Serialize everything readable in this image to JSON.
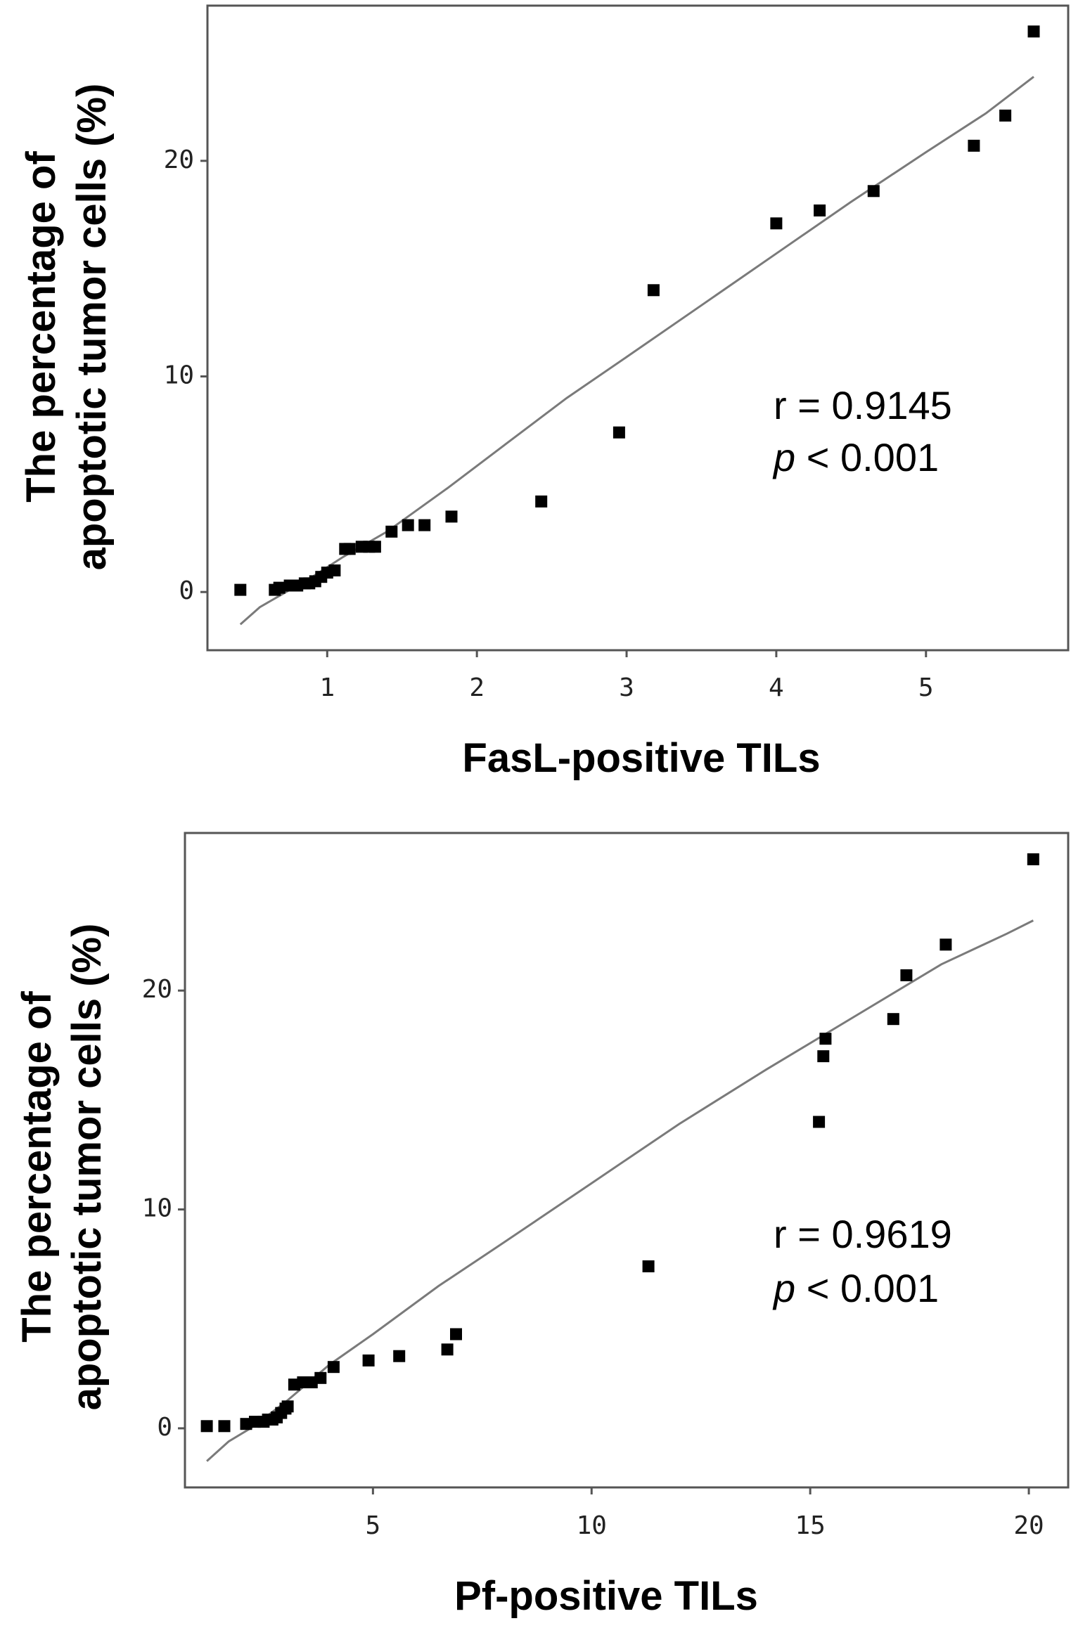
{
  "chart_data": [
    {
      "type": "scatter",
      "xlabel": "FasL-positive TILs",
      "ylabel_line1": "The percentage of",
      "ylabel_line2": "apoptotic tumor cells (%)",
      "xlim": [
        0.2,
        5.95
      ],
      "ylim": [
        -2.7,
        27.2
      ],
      "xticks": [
        1,
        2,
        3,
        4,
        5
      ],
      "yticks": [
        0,
        10,
        20
      ],
      "annotation": {
        "r_text": "r = 0.9145",
        "p_symbol": "p",
        "p_rest": " < 0.001"
      },
      "points": {
        "x": [
          0.42,
          0.65,
          0.68,
          0.75,
          0.8,
          0.85,
          0.88,
          0.92,
          0.96,
          1.0,
          1.05,
          1.12,
          1.15,
          1.23,
          1.28,
          1.32,
          1.43,
          1.54,
          1.65,
          1.83,
          2.43,
          2.95,
          3.18,
          4.0,
          4.29,
          4.65,
          5.32,
          5.53,
          5.72
        ],
        "y": [
          0.1,
          0.1,
          0.2,
          0.3,
          0.3,
          0.4,
          0.4,
          0.5,
          0.7,
          0.9,
          1.0,
          2.0,
          2.0,
          2.1,
          2.1,
          2.1,
          2.8,
          3.1,
          3.1,
          3.5,
          4.2,
          7.4,
          14.0,
          17.1,
          17.7,
          18.6,
          20.7,
          22.1,
          26.0
        ]
      },
      "trend": {
        "x": [
          0.42,
          0.55,
          0.7,
          0.9,
          1.1,
          1.4,
          1.8,
          2.2,
          2.6,
          3.0,
          3.5,
          4.0,
          4.5,
          5.0,
          5.4,
          5.72
        ],
        "y": [
          -1.5,
          -0.7,
          -0.1,
          0.7,
          1.6,
          2.8,
          4.8,
          6.9,
          9.0,
          10.9,
          13.3,
          15.7,
          18.1,
          20.4,
          22.2,
          23.9
        ]
      }
    },
    {
      "type": "scatter",
      "xlabel": "Pf-positive TILs",
      "ylabel_line1": "The percentage of",
      "ylabel_line2": "apoptotic tumor cells (%)",
      "xlim": [
        0.7,
        20.9
      ],
      "ylim": [
        -2.7,
        27.2
      ],
      "xticks": [
        5,
        10,
        15,
        20
      ],
      "yticks": [
        0,
        10,
        20
      ],
      "annotation": {
        "r_text": "r = 0.9619",
        "p_symbol": "p",
        "p_rest": " < 0.001"
      },
      "points": {
        "x": [
          1.2,
          1.6,
          2.1,
          2.3,
          2.5,
          2.6,
          2.7,
          2.8,
          2.9,
          3.0,
          3.05,
          3.2,
          3.4,
          3.6,
          3.8,
          4.1,
          4.9,
          5.6,
          6.7,
          6.9,
          11.3,
          15.2,
          15.3,
          15.35,
          16.9,
          17.2,
          18.1,
          20.1
        ],
        "y": [
          0.1,
          0.1,
          0.2,
          0.3,
          0.3,
          0.4,
          0.4,
          0.5,
          0.7,
          0.9,
          1.0,
          2.0,
          2.1,
          2.1,
          2.3,
          2.8,
          3.1,
          3.3,
          3.6,
          4.3,
          7.4,
          14.0,
          17.0,
          17.8,
          18.7,
          20.7,
          22.1,
          26.0
        ]
      },
      "trend": {
        "x": [
          1.2,
          1.7,
          2.2,
          3.0,
          4.0,
          5.0,
          6.5,
          8.0,
          10.0,
          12.0,
          14.0,
          16.0,
          18.0,
          19.5,
          20.1
        ],
        "y": [
          -1.5,
          -0.6,
          0.0,
          1.2,
          2.9,
          4.3,
          6.5,
          8.5,
          11.2,
          13.9,
          16.4,
          18.8,
          21.2,
          22.6,
          23.2
        ]
      }
    }
  ],
  "style": {
    "marker_color": "#000000",
    "trend_color": "#7a7a7a",
    "frame_color": "#555555"
  }
}
